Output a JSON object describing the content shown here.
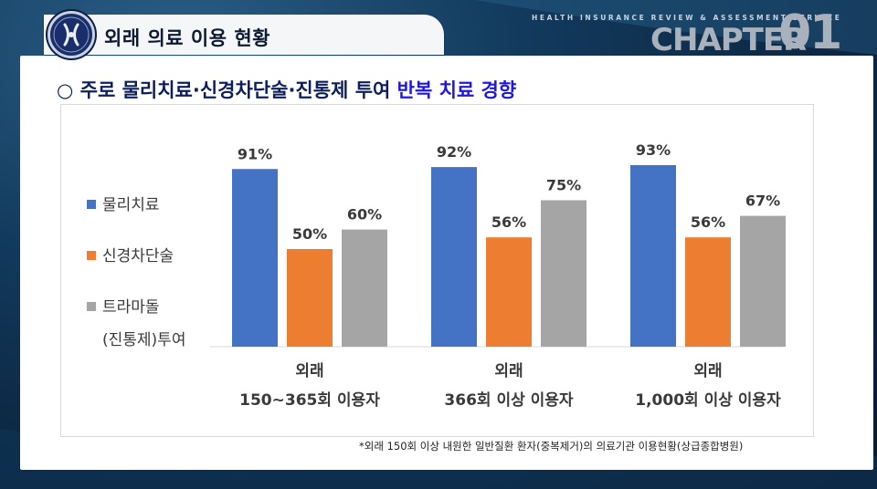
{
  "header": {
    "title": "외래 의료 이용 현황",
    "service": "HEALTH INSURANCE REVIEW & ASSESSMENT SERVICE",
    "chapter_label": "CHAPTER",
    "chapter_number": "01"
  },
  "headline": {
    "prefix": "○ 주로 물리치료·신경차단술·진통제 투여 ",
    "highlight": "반복 치료 경향"
  },
  "colors": {
    "blue": "#4472c4",
    "orange": "#ed7d31",
    "gray": "#a5a5a5"
  },
  "chart_data": {
    "type": "bar",
    "categories": [
      [
        "외래",
        "150~365회 이용자"
      ],
      [
        "외래",
        "366회 이상 이용자"
      ],
      [
        "외래",
        "1,000회 이상 이용자"
      ]
    ],
    "series": [
      {
        "name": "물리치료",
        "values": [
          91,
          92,
          93
        ],
        "labels": [
          "91%",
          "92%",
          "93%"
        ]
      },
      {
        "name": "신경차단술",
        "values": [
          50,
          56,
          56
        ],
        "labels": [
          "50%",
          "56%",
          "56%"
        ]
      },
      {
        "name": "트라마돌 (진통제)투여",
        "legend_lines": [
          "트라마돌",
          "(진통제)투여"
        ],
        "values": [
          60,
          75,
          67
        ],
        "labels": [
          "60%",
          "75%",
          "67%"
        ]
      }
    ],
    "unit": "%",
    "ylim": [
      0,
      100
    ],
    "grid": false,
    "legend": "left"
  },
  "footnote": "*외래 150회 이상 내원한 일반질환 환자(중복제거)의 의료기관 이용현황(상급종합병원)"
}
